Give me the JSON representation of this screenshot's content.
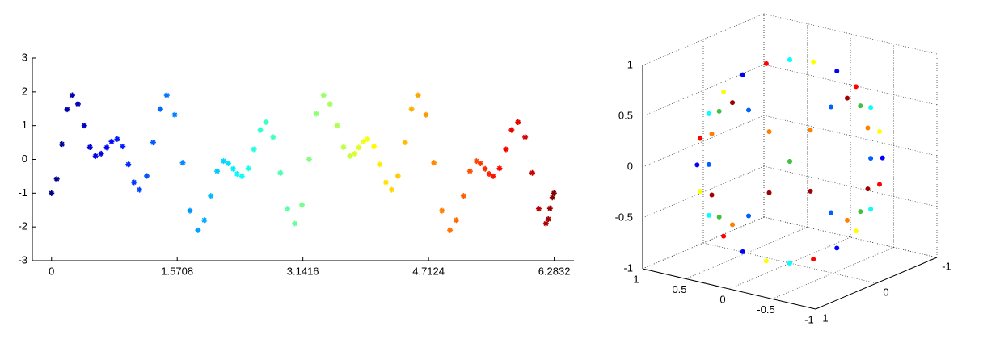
{
  "chart_data": [
    {
      "type": "scatter",
      "colormap": "jet",
      "marker": "star",
      "x": [
        0,
        0.065,
        0.13,
        0.195,
        0.26,
        0.33,
        0.41,
        0.48,
        0.55,
        0.62,
        0.69,
        0.75,
        0.82,
        0.89,
        0.96,
        1.03,
        1.1,
        1.19,
        1.27,
        1.36,
        1.44,
        1.54,
        1.64,
        1.73,
        1.83,
        1.91,
        1.99,
        2.07,
        2.15,
        2.21,
        2.27,
        2.32,
        2.38,
        2.46,
        2.53,
        2.61,
        2.68,
        2.77,
        2.86,
        2.95,
        3.04,
        3.13,
        3.22,
        3.31,
        3.4,
        3.48,
        3.57,
        3.65,
        3.73,
        3.79,
        3.84,
        3.9,
        3.95,
        4.03,
        4.1,
        4.18,
        4.25,
        4.33,
        4.42,
        4.5,
        4.58,
        4.68,
        4.78,
        4.88,
        4.98,
        5.06,
        5.15,
        5.23,
        5.31,
        5.36,
        5.42,
        5.47,
        5.52,
        5.6,
        5.68,
        5.75,
        5.83,
        5.92,
        6.01,
        6.09,
        6.18,
        6.21,
        6.23,
        6.26,
        6.28
      ],
      "values": [
        -1,
        -0.58,
        0.45,
        1.48,
        1.9,
        1.64,
        1.0,
        0.36,
        0.1,
        0.17,
        0.35,
        0.53,
        0.6,
        0.38,
        -0.15,
        -0.68,
        -0.9,
        -0.49,
        0.5,
        1.49,
        1.9,
        1.32,
        -0.1,
        -1.52,
        -2.1,
        -1.8,
        -1.08,
        -0.35,
        -0.05,
        -0.12,
        -0.28,
        -0.43,
        -0.5,
        -0.27,
        0.3,
        0.87,
        1.1,
        0.66,
        -0.4,
        -1.46,
        -1.9,
        -1.35,
        0,
        1.35,
        1.9,
        1.64,
        1.0,
        0.36,
        0.1,
        0.17,
        0.35,
        0.53,
        0.6,
        0.38,
        -0.15,
        -0.68,
        -0.9,
        -0.49,
        0.5,
        1.49,
        1.9,
        1.32,
        -0.1,
        -1.52,
        -2.1,
        -1.8,
        -1.08,
        -0.35,
        -0.05,
        -0.12,
        -0.28,
        -0.43,
        -0.5,
        -0.27,
        0.3,
        0.87,
        1.1,
        0.66,
        -0.4,
        -1.46,
        -1.9,
        -1.77,
        -1.45,
        -1.13,
        -1
      ],
      "xlim": [
        -0.24,
        6.53
      ],
      "xticks": [
        0,
        1.5708,
        3.1416,
        4.7124,
        6.2832
      ],
      "ylim": [
        -3,
        3
      ],
      "yticks": [
        -3,
        -2,
        -1,
        0,
        1,
        2,
        3
      ]
    },
    {
      "type": "scatter3d",
      "grid": true,
      "series": [
        {
          "colors": [
            "#0000ff",
            "#ffff00",
            "#00ffff",
            "#ff0000"
          ],
          "x": [
            -0.63,
            -0.61,
            -0.55,
            -0.45,
            -0.32,
            -0.16,
            0,
            0.16,
            0.32,
            0.45,
            0.55,
            0.61,
            0.63,
            0.61,
            0.55,
            0.45,
            0.32,
            0.16,
            0,
            -0.16,
            -0.32,
            -0.45,
            -0.55,
            -0.61
          ],
          "y": [
            -0.63,
            -0.61,
            -0.55,
            -0.45,
            -0.32,
            -0.16,
            0,
            0.16,
            0.32,
            0.45,
            0.55,
            0.61,
            0.63,
            0.61,
            0.55,
            0.45,
            0.32,
            0.16,
            0,
            -0.16,
            -0.32,
            -0.45,
            -0.55,
            -0.61
          ],
          "z": [
            0,
            0.26,
            0.5,
            0.71,
            0.87,
            0.97,
            1,
            0.97,
            0.87,
            0.71,
            0.5,
            0.26,
            0,
            -0.26,
            -0.5,
            -0.71,
            -0.87,
            -0.97,
            -1,
            -0.97,
            -0.87,
            -0.71,
            -0.5,
            -0.26
          ]
        },
        {
          "colors": [
            "#0060ff",
            "#ff8000",
            "#40c040",
            "#a00000"
          ],
          "x": [
            -0.55,
            -0.53,
            -0.48,
            -0.39,
            -0.28,
            -0.14,
            0,
            0.14,
            0.28,
            0.39,
            0.48,
            0.53,
            0.55,
            0.53,
            0.48,
            0.39,
            0.28,
            0.14,
            0,
            -0.14,
            -0.28,
            -0.39,
            -0.48,
            -0.53
          ],
          "y": [
            -0.55,
            -0.53,
            -0.48,
            -0.39,
            -0.28,
            -0.14,
            0,
            0.14,
            0.28,
            0.39,
            0.48,
            0.53,
            0.55,
            0.53,
            0.48,
            0.39,
            0.28,
            0.14,
            0,
            -0.14,
            -0.28,
            -0.39,
            -0.48,
            -0.53
          ],
          "z": [
            0,
            0.3,
            0.52,
            0.6,
            0.52,
            0.3,
            0,
            -0.3,
            -0.52,
            -0.6,
            -0.52,
            -0.3,
            0,
            0.3,
            0.52,
            0.6,
            0.52,
            0.3,
            0,
            -0.3,
            -0.52,
            -0.6,
            -0.52,
            -0.3
          ]
        }
      ],
      "xlim": [
        -1,
        1
      ],
      "xticks": [
        -1,
        -0.5,
        0,
        0.5,
        1
      ],
      "ylim": [
        -1,
        1
      ],
      "yticks": [
        -1,
        0,
        1
      ],
      "zlim": [
        -1,
        1
      ],
      "zticks": [
        -1,
        -0.5,
        0,
        0.5,
        1
      ]
    }
  ]
}
